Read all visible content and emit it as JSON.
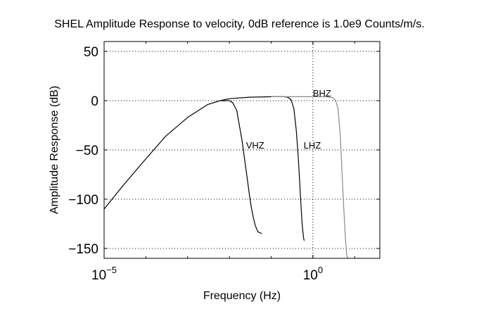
{
  "chart_data": {
    "type": "line",
    "title": "SHEL Amplitude Response to velocity, 0dB reference is 1.0e9 Counts/m/s.",
    "xlabel": "Frequency (Hz)",
    "ylabel": "Amplitude Response (dB)",
    "xscale": "log",
    "xlim": [
      1e-05,
      40
    ],
    "ylim": [
      -160,
      60
    ],
    "xticks": [
      {
        "value": 1e-05,
        "base": "10",
        "exp": "−5"
      },
      {
        "value": 1,
        "base": "10",
        "exp": "0"
      }
    ],
    "yticks": [
      {
        "value": 50,
        "label": "50"
      },
      {
        "value": 0,
        "label": "0"
      },
      {
        "value": -50,
        "label": "−50"
      },
      {
        "value": -100,
        "label": "−100"
      },
      {
        "value": -150,
        "label": "−150"
      }
    ],
    "grid": true,
    "legend": "none",
    "series": [
      {
        "name": "VHZ",
        "color": "#000000",
        "label_at": [
          0.025,
          -45
        ],
        "x": [
          1e-05,
          3e-05,
          0.0001,
          0.0003,
          0.001,
          0.003,
          0.006,
          0.01,
          0.012,
          0.015,
          0.02,
          0.025,
          0.03,
          0.034,
          0.038,
          0.042,
          0.048,
          0.06
        ],
        "y": [
          -110,
          -85,
          -59,
          -36,
          -17,
          -4,
          0,
          0,
          -2,
          -10,
          -40,
          -70,
          -95,
          -110,
          -120,
          -127,
          -133,
          -135
        ]
      },
      {
        "name": "LHZ",
        "color": "#000000",
        "label_at": [
          0.6,
          -45
        ],
        "x": [
          0.006,
          0.01,
          0.03,
          0.1,
          0.2,
          0.25,
          0.3,
          0.35,
          0.4,
          0.45,
          0.5,
          0.55,
          0.6,
          0.62
        ],
        "y": [
          0,
          2,
          3.5,
          4,
          4,
          3.5,
          1,
          -8,
          -30,
          -60,
          -95,
          -125,
          -140,
          -142
        ]
      },
      {
        "name": "BHZ",
        "color": "#888888",
        "label_at": [
          1.0,
          8
        ],
        "x": [
          0.1,
          0.3,
          0.6,
          1,
          2,
          3,
          3.5,
          4,
          4.5,
          5,
          5.5,
          6,
          6.5,
          7
        ],
        "y": [
          4,
          4,
          4,
          4,
          4,
          3,
          0,
          -8,
          -35,
          -75,
          -110,
          -140,
          -158,
          -165
        ]
      }
    ]
  }
}
